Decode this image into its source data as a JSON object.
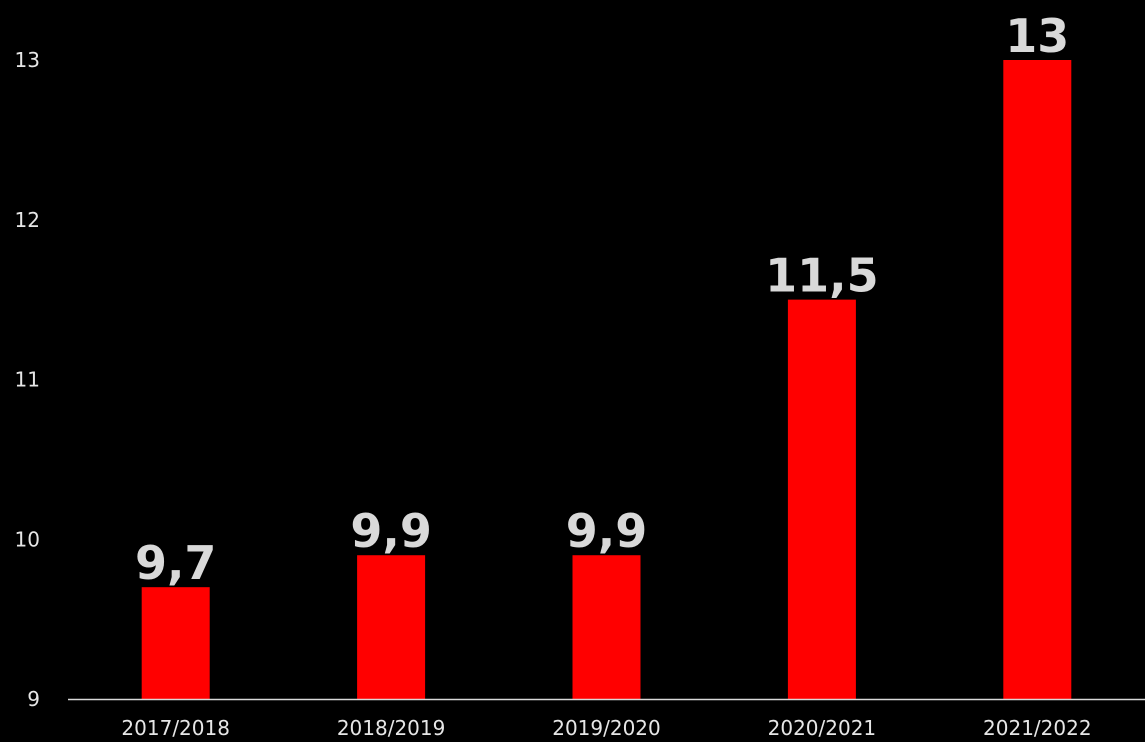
{
  "chart_data": {
    "type": "bar",
    "title": "",
    "xlabel": "",
    "ylabel": "",
    "categories": [
      "2017/2018",
      "2018/2019",
      "2019/2020",
      "2020/2021",
      "2021/2022"
    ],
    "values": [
      9.7,
      9.9,
      9.9,
      11.5,
      13
    ],
    "data_labels": [
      "9,7",
      "9,9",
      "9,9",
      "11,5",
      "13"
    ],
    "ylim": [
      9,
      13
    ],
    "yticks": [
      9,
      10,
      11,
      12,
      13
    ],
    "ytick_labels": [
      "9",
      "10",
      "11",
      "12",
      "13"
    ],
    "grid": false,
    "legend": "none"
  },
  "colors": {
    "background": "#000000",
    "bar": "#ff0000",
    "axis": "#d9d9d9",
    "text": "#e6e6e6",
    "data_label": "#d9d9d9"
  }
}
